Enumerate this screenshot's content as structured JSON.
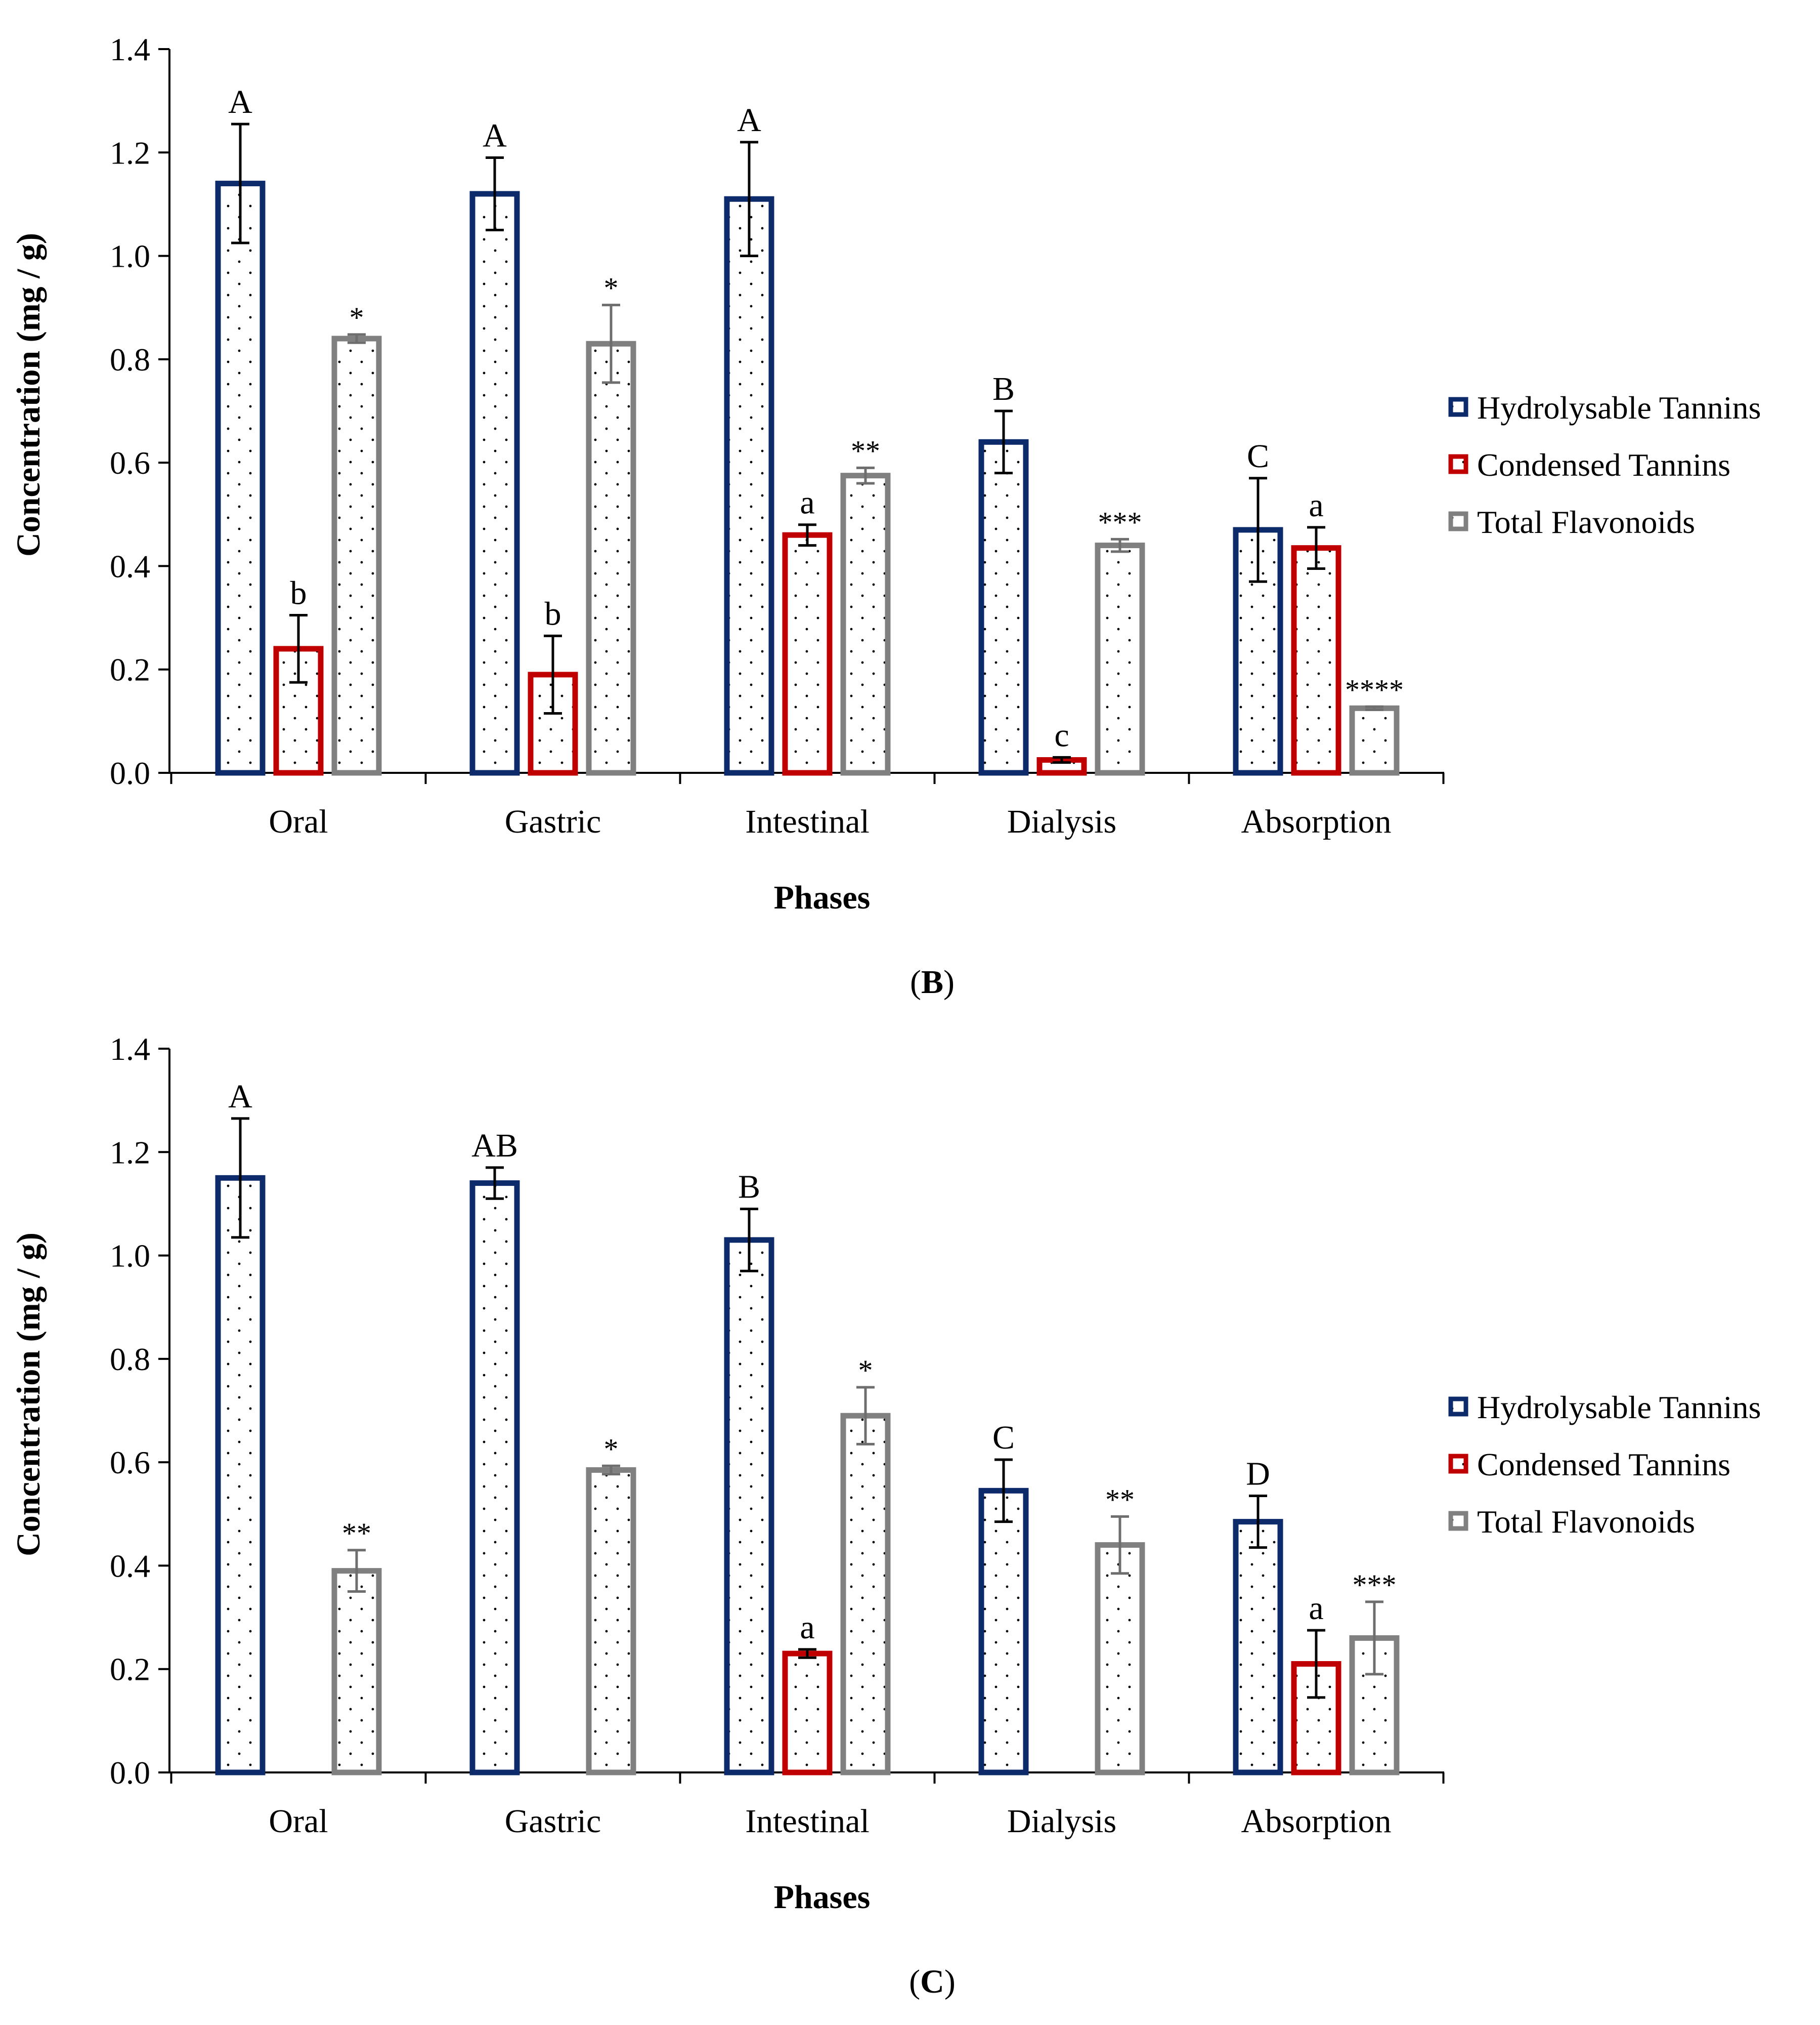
{
  "colors": {
    "hydrolysable": "#0d2a6b",
    "condensed": "#c00000",
    "flavonoids": "#808080",
    "axis": "#000000",
    "dots": "#000000"
  },
  "panels": [
    {
      "caption_letter": "B",
      "xlabel": "Phases",
      "ylabel": "Concentration (mg / g)"
    },
    {
      "caption_letter": "C",
      "xlabel": "Phases",
      "ylabel": "Concentration (mg / g)"
    }
  ],
  "chart_data": [
    {
      "type": "bar",
      "panel": "B",
      "categories": [
        "Oral",
        "Gastric",
        "Intestinal",
        "Dialysis",
        "Absorption"
      ],
      "ylim": [
        0,
        1.4
      ],
      "yticks": [
        "0.0",
        "0.2",
        "0.4",
        "0.6",
        "0.8",
        "1.0",
        "1.2",
        "1.4"
      ],
      "legend_position": "right",
      "series": [
        {
          "name": "Hydrolysable Tannins",
          "values": [
            1.14,
            1.12,
            1.11,
            0.64,
            0.47
          ],
          "errors": [
            0.115,
            0.07,
            0.11,
            0.06,
            0.1
          ],
          "labels": [
            "A",
            "A",
            "A",
            "B",
            "C"
          ]
        },
        {
          "name": "Condensed Tannins",
          "values": [
            0.24,
            0.19,
            0.46,
            0.025,
            0.435
          ],
          "errors": [
            0.065,
            0.075,
            0.02,
            0.005,
            0.04
          ],
          "labels": [
            "b",
            "b",
            "a",
            "c",
            "a"
          ]
        },
        {
          "name": "Total Flavonoids",
          "values": [
            0.84,
            0.83,
            0.575,
            0.44,
            0.125
          ],
          "errors": [
            0.008,
            0.075,
            0.015,
            0.012,
            0.003
          ],
          "labels": [
            "*",
            "*",
            "**",
            "***",
            "****"
          ]
        }
      ]
    },
    {
      "type": "bar",
      "panel": "C",
      "categories": [
        "Oral",
        "Gastric",
        "Intestinal",
        "Dialysis",
        "Absorption"
      ],
      "ylim": [
        0,
        1.4
      ],
      "yticks": [
        "0.0",
        "0.2",
        "0.4",
        "0.6",
        "0.8",
        "1.0",
        "1.2",
        "1.4"
      ],
      "legend_position": "right",
      "series": [
        {
          "name": "Hydrolysable Tannins",
          "values": [
            1.15,
            1.14,
            1.03,
            0.545,
            0.485
          ],
          "errors": [
            0.115,
            0.03,
            0.06,
            0.06,
            0.05
          ],
          "labels": [
            "A",
            "AB",
            "B",
            "C",
            "D"
          ]
        },
        {
          "name": "Condensed Tannins",
          "values": [
            0,
            0,
            0.23,
            0,
            0.21
          ],
          "errors": [
            0,
            0,
            0.008,
            0,
            0.065
          ],
          "labels": [
            "",
            "",
            "a",
            "",
            "a"
          ]
        },
        {
          "name": "Total Flavonoids",
          "values": [
            0.39,
            0.585,
            0.69,
            0.44,
            0.26
          ],
          "errors": [
            0.04,
            0.008,
            0.055,
            0.055,
            0.07
          ],
          "labels": [
            "**",
            "*",
            "*",
            "**",
            "***"
          ]
        }
      ]
    }
  ]
}
